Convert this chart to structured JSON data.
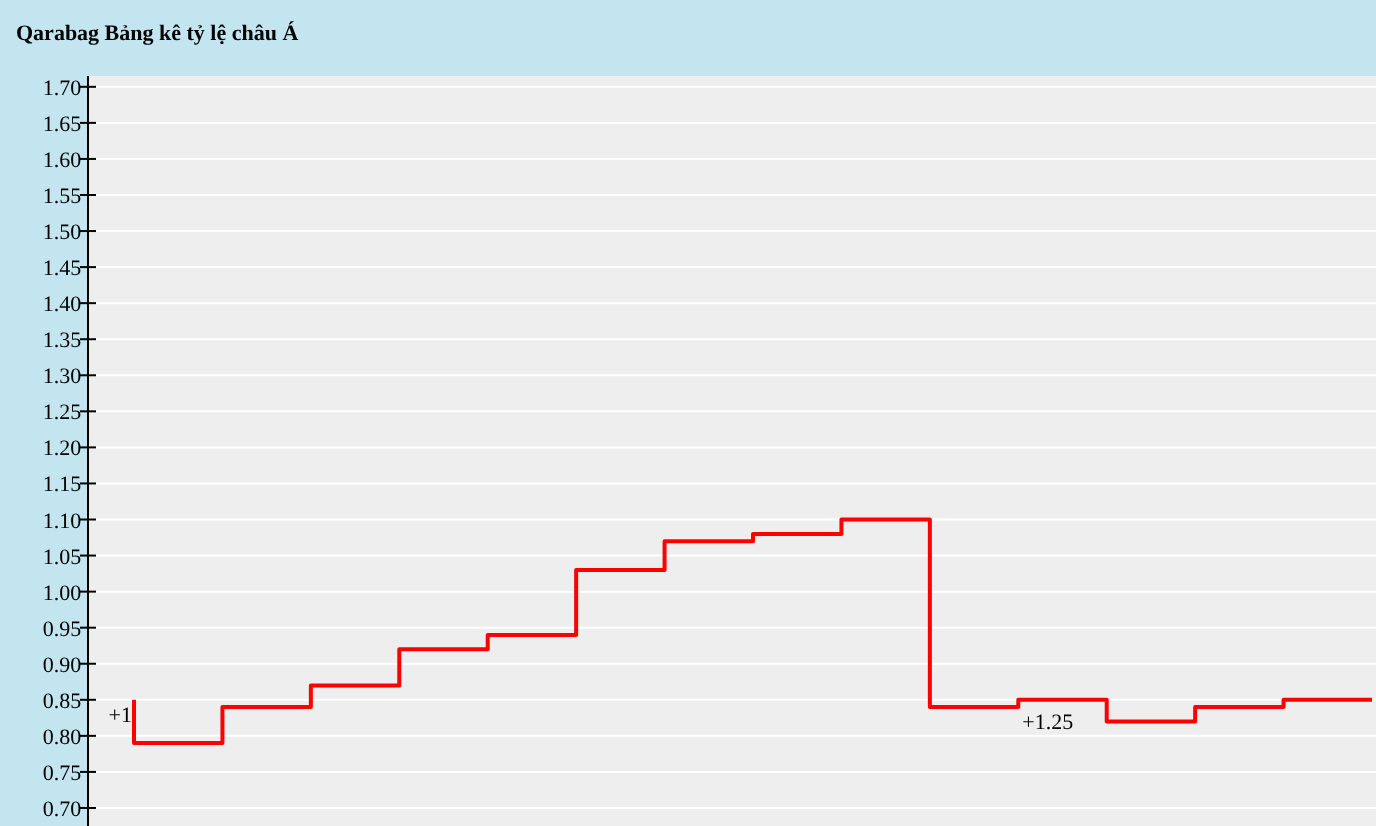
{
  "chart_data": {
    "type": "step",
    "title": "Qarabag Bảng kê tỷ lệ châu Á",
    "categories": [
      null,
      null,
      null,
      null,
      null,
      null,
      null,
      null,
      null,
      null,
      null,
      null,
      null,
      null,
      null
    ],
    "series": [
      {
        "color": "#ff0000",
        "values": [
          0.85,
          0.79,
          0.84,
          0.87,
          0.92,
          0.94,
          1.03,
          1.07,
          1.08,
          1.1,
          0.84,
          0.85,
          0.82,
          0.84,
          0.85
        ]
      }
    ],
    "ylim": [
      0.675,
      1.715
    ],
    "yticks": [
      {
        "value": 0.7,
        "label": "0.70"
      },
      {
        "value": 0.75,
        "label": "0.75"
      },
      {
        "value": 0.8,
        "label": "0.80"
      },
      {
        "value": 0.85,
        "label": "0.85"
      },
      {
        "value": 0.9,
        "label": "0.90"
      },
      {
        "value": 0.95,
        "label": "0.95"
      },
      {
        "value": 1.0,
        "label": "1.00"
      },
      {
        "value": 1.05,
        "label": "1.05"
      },
      {
        "value": 1.1,
        "label": "1.10"
      },
      {
        "value": 1.15,
        "label": "1.15"
      },
      {
        "value": 1.2,
        "label": "1.20"
      },
      {
        "value": 1.25,
        "label": "1.25"
      },
      {
        "value": 1.3,
        "label": "1.30"
      },
      {
        "value": 1.35,
        "label": "1.35"
      },
      {
        "value": 1.4,
        "label": "1.40"
      },
      {
        "value": 1.45,
        "label": "1.45"
      },
      {
        "value": 1.5,
        "label": "1.50"
      },
      {
        "value": 1.55,
        "label": "1.55"
      },
      {
        "value": 1.6,
        "label": "1.60"
      },
      {
        "value": 1.65,
        "label": "1.65"
      },
      {
        "value": 1.7,
        "label": "1.70"
      }
    ],
    "grid": "y",
    "annotations": [
      "+1",
      "+1.25"
    ]
  }
}
